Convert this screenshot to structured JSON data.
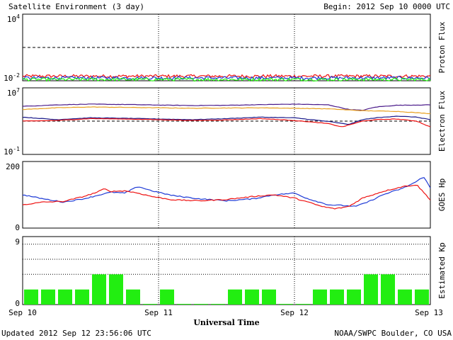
{
  "header": {
    "title": "Satellite Environment (3 day)",
    "begin": "Begin:  2012 Sep 10 0000 UTC"
  },
  "footer": {
    "updated": "Updated 2012 Sep 12 23:56:06 UTC",
    "credit": "NOAA/SWPC Boulder, CO USA"
  },
  "colors": {
    "red": "#ee1111",
    "blue": "#1f3bd6",
    "green": "#22ee11",
    "navy": "#1a1a8a",
    "orange": "#e8a020",
    "purple": "#4a1a8a"
  },
  "chart_data": [
    {
      "type": "line",
      "ylabel": "Proton Flux",
      "yscale": "log",
      "ylim": [
        0.01,
        10000
      ],
      "y_tick_labels": [
        {
          "base": "10",
          "exp": "4"
        },
        {
          "base": "10",
          "exp": "-2"
        }
      ],
      "threshold": 10,
      "x": [
        "Sep 10",
        "Sep 11",
        "Sep 12",
        "Sep 13"
      ],
      "series": [
        {
          "color": "#ee1111",
          "level": 0.026
        },
        {
          "color": "#1f3bd6",
          "level": 0.018
        },
        {
          "color": "#22ee11",
          "level": 0.013
        }
      ]
    },
    {
      "type": "line",
      "ylabel": "Electron Flux",
      "yscale": "log",
      "ylim": [
        0.1,
        10000000
      ],
      "y_tick_labels": [
        {
          "base": "10",
          "exp": "7"
        },
        {
          "base": "10",
          "exp": "-1"
        }
      ],
      "threshold": 1000,
      "series": [
        {
          "color": "#4a1a8a",
          "day": [
            0,
            0.25,
            0.5,
            0.75,
            1,
            1.25,
            1.5,
            1.75,
            2,
            2.25,
            2.4,
            2.5,
            2.6,
            2.75,
            3
          ],
          "y": [
            60000,
            90000,
            110000,
            100000,
            85000,
            75000,
            80000,
            95000,
            110000,
            90000,
            25000,
            20000,
            50000,
            80000,
            90000
          ]
        },
        {
          "color": "#e8a020",
          "day": [
            0,
            0.25,
            0.5,
            0.75,
            1,
            1.25,
            1.5,
            1.75,
            2,
            2.25,
            2.5,
            2.75,
            3
          ],
          "y": [
            25000,
            40000,
            50000,
            45000,
            40000,
            35000,
            38000,
            40000,
            35000,
            30000,
            18000,
            15000,
            8000
          ]
        },
        {
          "color": "#1a1a8a",
          "day": [
            0,
            0.25,
            0.5,
            0.75,
            1,
            1.25,
            1.5,
            1.75,
            2,
            2.25,
            2.4,
            2.5,
            2.6,
            2.75,
            2.9,
            3
          ],
          "y": [
            3000,
            1500,
            2500,
            2200,
            1800,
            1500,
            2000,
            3000,
            2500,
            900,
            400,
            1500,
            2500,
            4000,
            3000,
            1500
          ]
        },
        {
          "color": "#ee1111",
          "day": [
            0,
            0.25,
            0.5,
            0.75,
            1,
            1.25,
            1.5,
            1.75,
            2,
            2.25,
            2.35,
            2.5,
            2.6,
            2.75,
            2.9,
            3
          ],
          "y": [
            1000,
            1200,
            2000,
            1800,
            1500,
            1200,
            1400,
            2000,
            1200,
            500,
            200,
            1000,
            1500,
            1800,
            1000,
            200
          ]
        }
      ]
    },
    {
      "type": "line",
      "ylabel": "GOES Hp",
      "ylim": [
        0,
        200
      ],
      "y_tick_labels": [
        "200",
        "0"
      ],
      "series": [
        {
          "color": "#1f3bd6",
          "day": [
            0,
            0.15,
            0.3,
            0.45,
            0.55,
            0.65,
            0.75,
            0.85,
            0.95,
            1.1,
            1.3,
            1.5,
            1.7,
            1.85,
            2,
            2.1,
            2.25,
            2.35,
            2.45,
            2.55,
            2.65,
            2.8,
            2.9,
            2.95,
            3
          ],
          "y": [
            100,
            88,
            78,
            88,
            98,
            108,
            105,
            125,
            112,
            98,
            88,
            82,
            88,
            100,
            105,
            88,
            70,
            68,
            65,
            80,
            100,
            120,
            140,
            155,
            120
          ]
        },
        {
          "color": "#ee1111",
          "day": [
            0,
            0.15,
            0.3,
            0.45,
            0.55,
            0.6,
            0.65,
            0.75,
            0.85,
            0.95,
            1.1,
            1.3,
            1.5,
            1.7,
            1.85,
            2,
            2.1,
            2.2,
            2.3,
            2.4,
            2.5,
            2.65,
            2.8,
            2.9,
            3
          ],
          "y": [
            70,
            78,
            80,
            95,
            108,
            118,
            110,
            112,
            105,
            95,
            85,
            82,
            86,
            95,
            100,
            90,
            78,
            65,
            58,
            65,
            90,
            110,
            125,
            130,
            85
          ]
        }
      ]
    },
    {
      "type": "bar",
      "ylabel": "Estimated Kp",
      "ylim": [
        0,
        9
      ],
      "y_tick_labels": [
        "9",
        "0"
      ],
      "color": "#22ee11",
      "values": [
        2,
        2,
        2,
        2,
        4,
        4,
        2,
        0,
        2,
        0,
        0,
        0,
        2,
        2,
        2,
        0,
        0,
        2,
        2,
        2,
        4,
        4,
        2,
        2
      ]
    }
  ],
  "x_axis": {
    "tick_labels": [
      "Sep 10",
      "Sep 11",
      "Sep 12",
      "Sep 13"
    ],
    "label": "Universal Time"
  }
}
